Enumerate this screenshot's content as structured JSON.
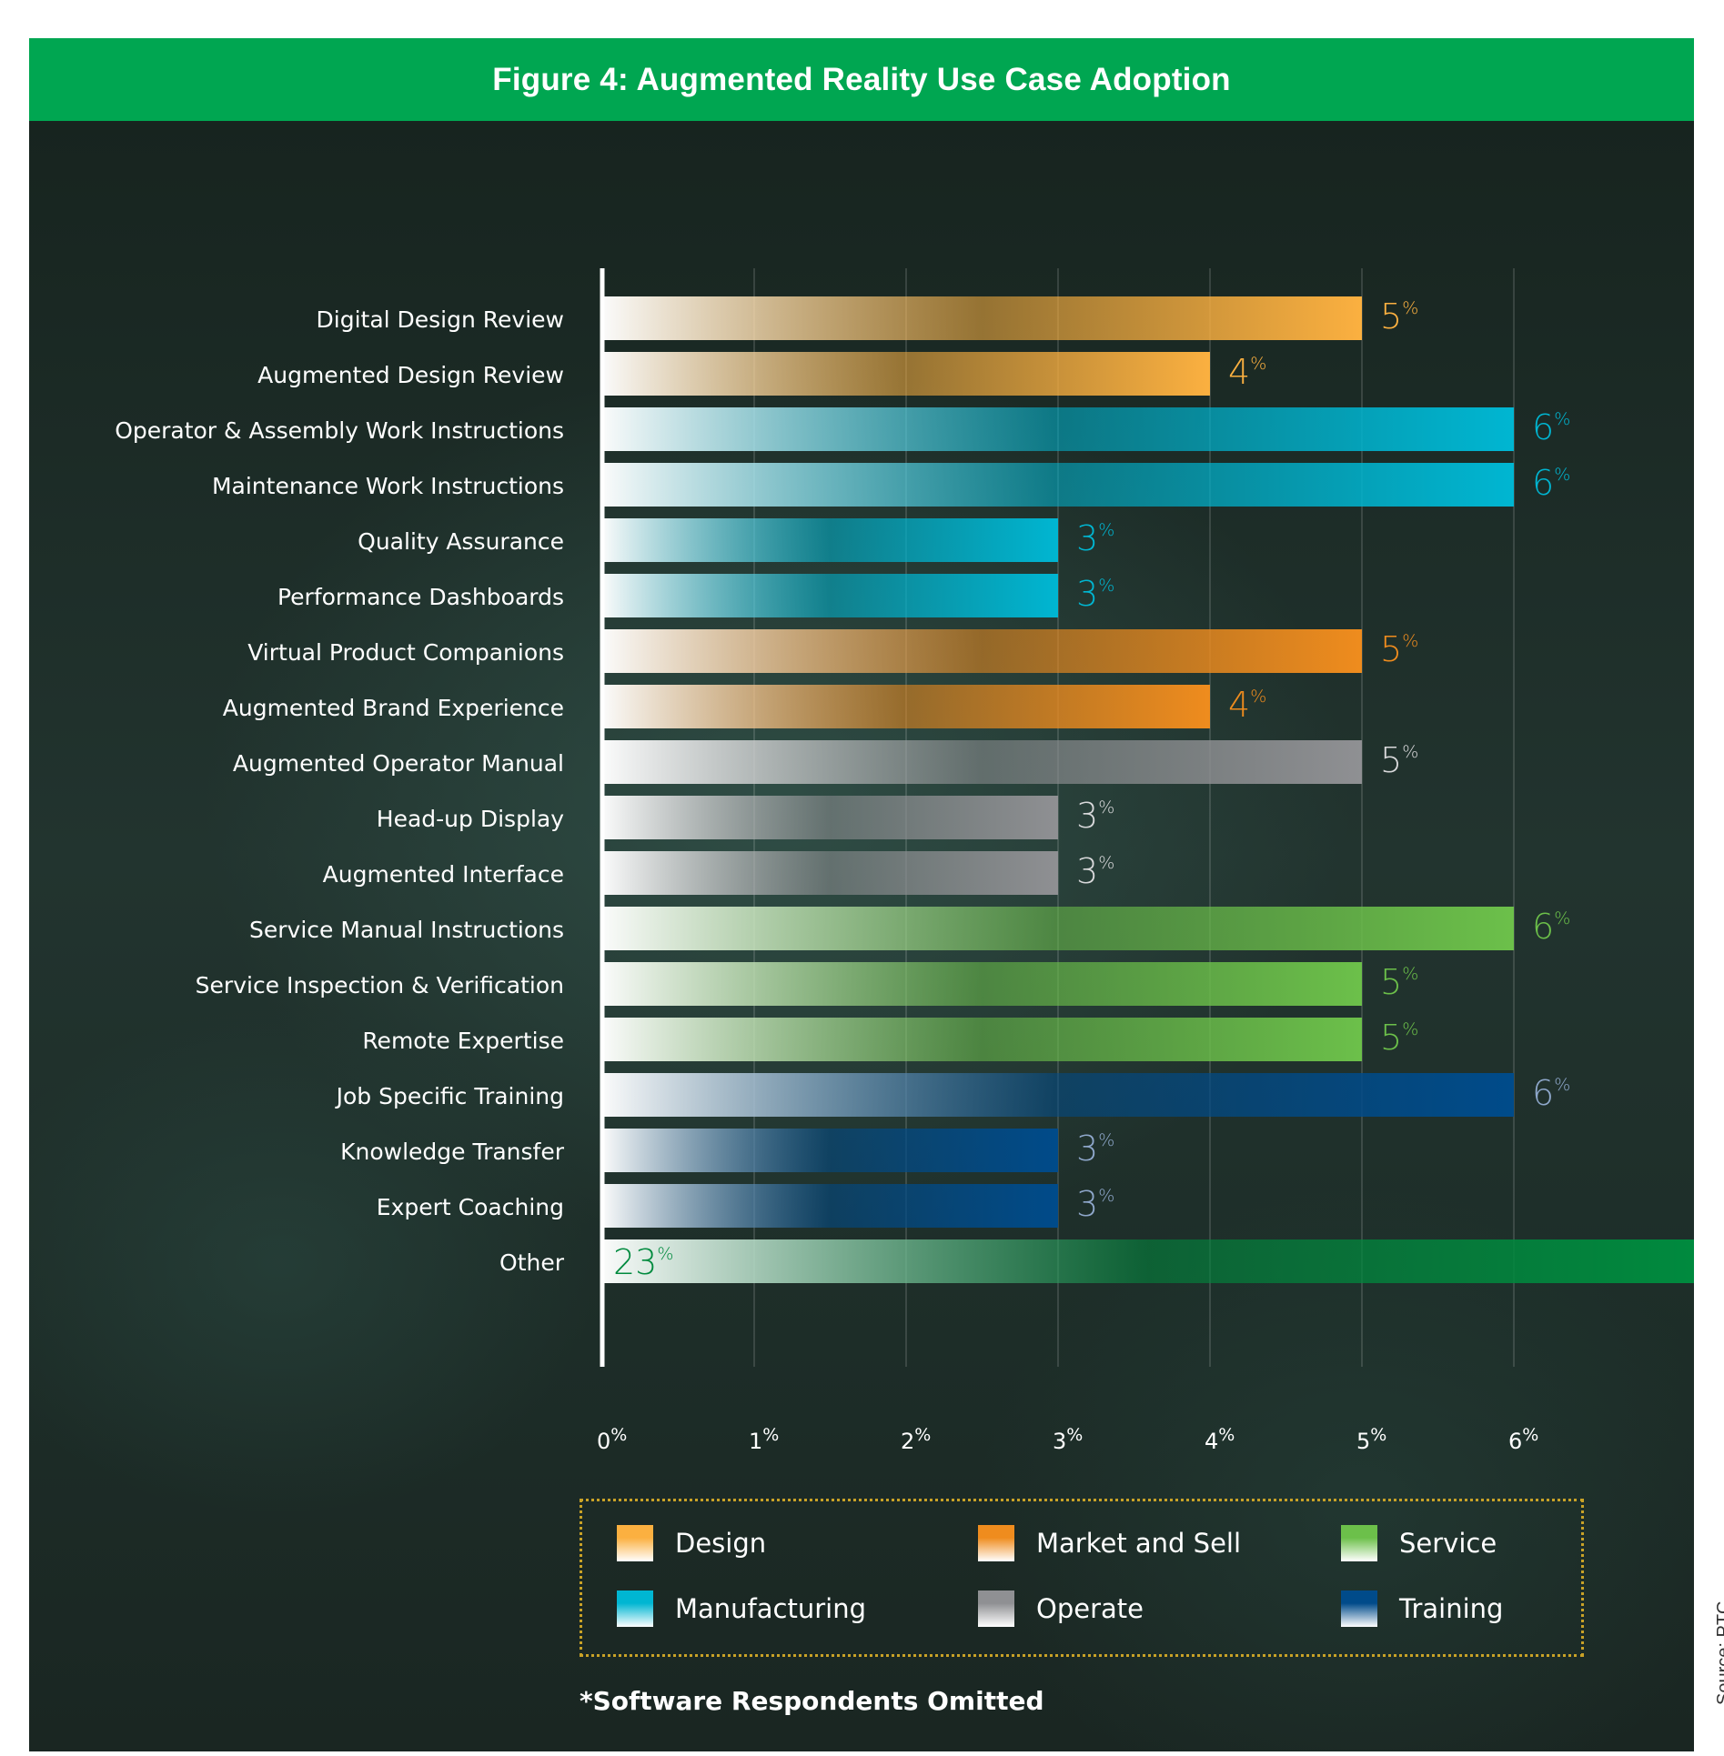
{
  "title": "Figure 4: Augmented Reality Use Case Adoption",
  "footnote": "*Software Respondents Omitted",
  "source": "Source: PTC",
  "colors": {
    "header_green": "#00a651",
    "Design": "#fbb040",
    "Manufacturing": "#00b6d2",
    "Market and Sell": "#ef8c1e",
    "Operate": "#8f9093",
    "Service": "#6cc04a",
    "Training": "#004b8a",
    "Other": "#008a3e"
  },
  "legend": {
    "items": [
      {
        "label": "Design",
        "category": "Design"
      },
      {
        "label": "Market and Sell",
        "category": "Market and Sell"
      },
      {
        "label": "Service",
        "category": "Service"
      },
      {
        "label": "Manufacturing",
        "category": "Manufacturing"
      },
      {
        "label": "Operate",
        "category": "Operate"
      },
      {
        "label": "Training",
        "category": "Training"
      }
    ]
  },
  "chart_data": {
    "type": "bar",
    "orientation": "horizontal",
    "title": "Figure 4: Augmented Reality Use Case Adoption",
    "xlim": [
      0,
      6
    ],
    "x_unit": "%",
    "grid": true,
    "legend_position": "bottom",
    "ticks": [
      "0%",
      "1%",
      "2%",
      "3%",
      "4%",
      "5%",
      "6%"
    ],
    "categories": [
      "Digital Design Review",
      "Augmented Design Review",
      "Operator & Assembly Work Instructions",
      "Maintenance Work Instructions",
      "Quality Assurance",
      "Performance Dashboards",
      "Virtual Product Companions",
      "Augmented Brand Experience",
      "Augmented Operator Manual",
      "Head-up Display",
      "Augmented Interface",
      "Service Manual Instructions",
      "Service Inspection & Verification",
      "Remote Expertise",
      "Job Specific Training",
      "Knowledge Transfer",
      "Expert Coaching",
      "Other"
    ],
    "values": [
      5,
      4,
      6,
      6,
      3,
      3,
      5,
      4,
      5,
      3,
      3,
      6,
      5,
      5,
      6,
      3,
      3,
      23
    ],
    "groups": [
      "Design",
      "Design",
      "Manufacturing",
      "Manufacturing",
      "Manufacturing",
      "Manufacturing",
      "Market and Sell",
      "Market and Sell",
      "Operate",
      "Operate",
      "Operate",
      "Service",
      "Service",
      "Service",
      "Training",
      "Training",
      "Training",
      "Other"
    ],
    "value_labels": [
      "5",
      "4",
      "6",
      "6",
      "3",
      "3",
      "5",
      "4",
      "5",
      "3",
      "3",
      "6",
      "5",
      "5",
      "6",
      "3",
      "3",
      "23"
    ],
    "value_label_colors": [
      "#fbb040",
      "#fbb040",
      "#00b6d2",
      "#00b6d2",
      "#00b6d2",
      "#00b6d2",
      "#ef8c1e",
      "#ef8c1e",
      "#d9d9db",
      "#d9d9db",
      "#d9d9db",
      "#6cc04a",
      "#6cc04a",
      "#6cc04a",
      "#8fa8cc",
      "#8fa8cc",
      "#8fa8cc",
      "#008a3e"
    ],
    "percent_symbol": "%"
  }
}
